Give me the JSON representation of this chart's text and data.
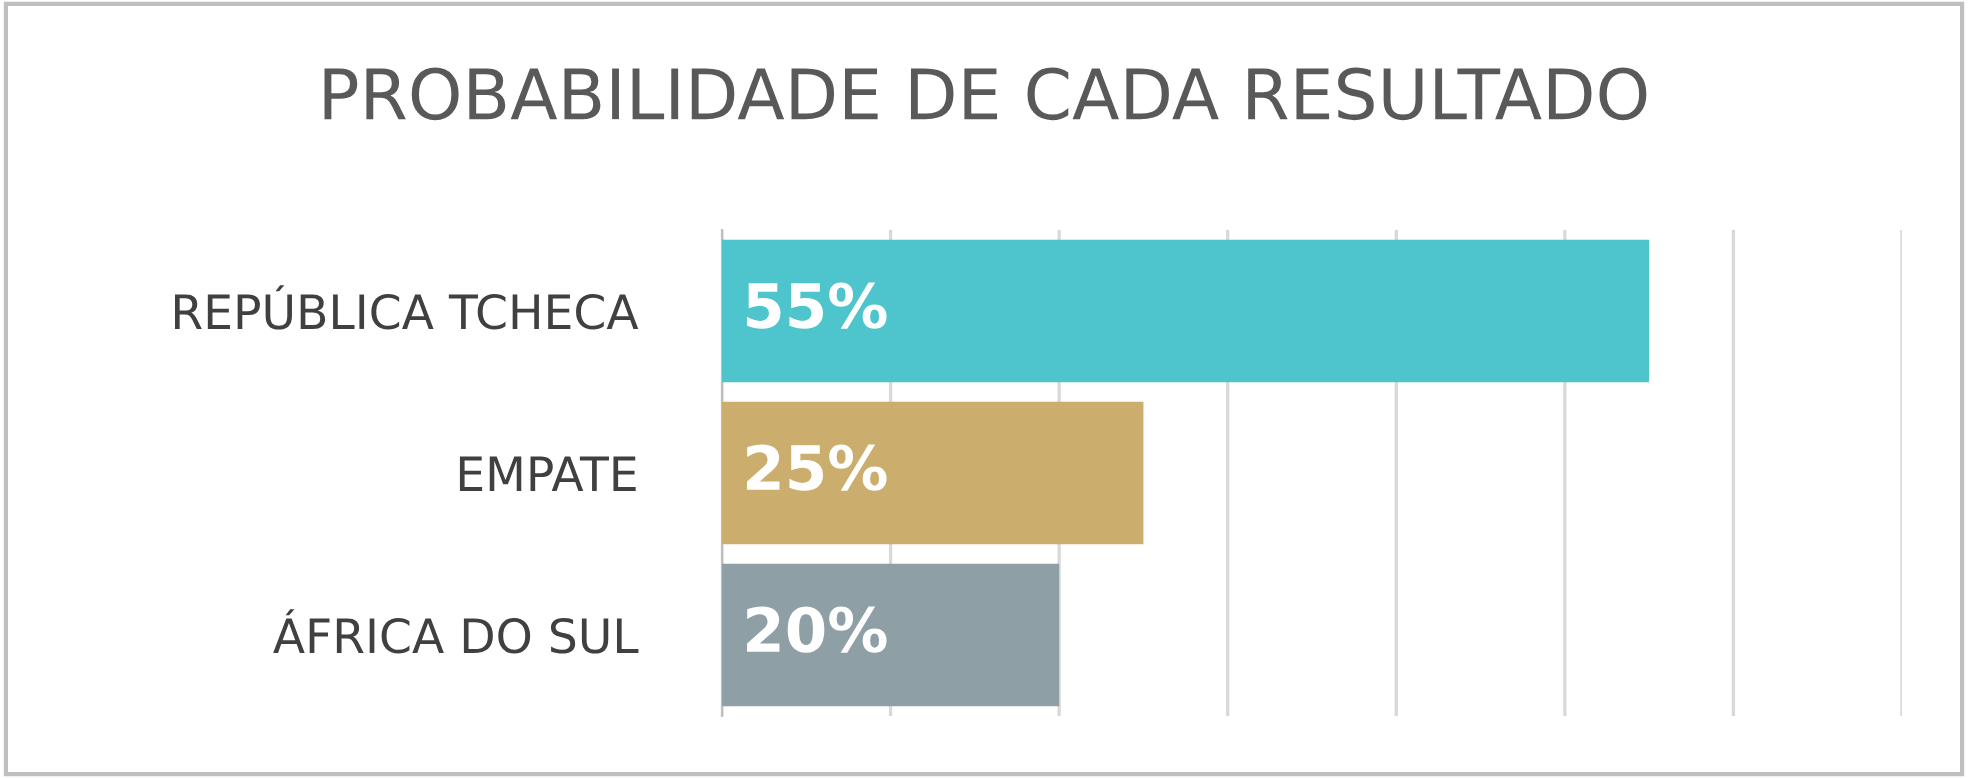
{
  "chart_data": {
    "type": "bar",
    "orientation": "horizontal",
    "title": "PROBABILIDADE DE CADA RESULTADO",
    "categories": [
      "REPÚBLICA TCHECA",
      "EMPATE",
      "ÁFRICA DO SUL"
    ],
    "values": [
      55,
      25,
      20
    ],
    "colors": [
      "#4ec4cc",
      "#cbad6e",
      "#8e9fa6"
    ],
    "value_labels": [
      "55%",
      "25%",
      "20%"
    ],
    "xlim": [
      0,
      70
    ],
    "xticks": [
      {
        "value": 0,
        "label": null
      },
      {
        "value": 10,
        "label": null
      },
      {
        "value": 20,
        "label": null
      },
      {
        "value": 30,
        "label": null
      },
      {
        "value": 40,
        "label": null
      },
      {
        "value": 50,
        "label": null
      },
      {
        "value": 60,
        "label": null
      },
      {
        "value": 70,
        "label": null
      }
    ],
    "grid": "x",
    "tick_labels": "y",
    "legend": false
  }
}
